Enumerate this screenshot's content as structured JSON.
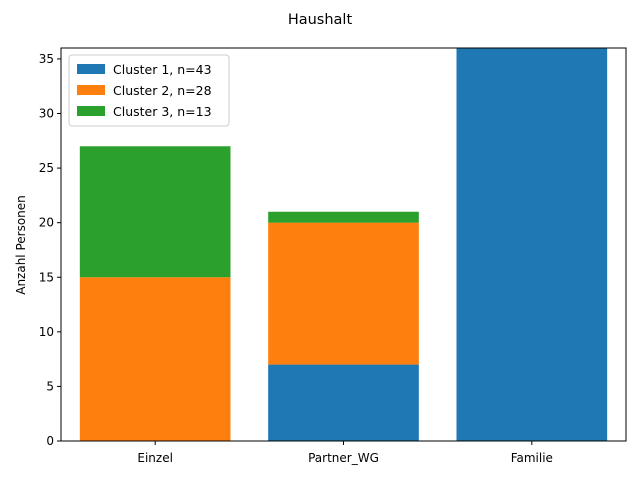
{
  "chart_data": {
    "type": "bar",
    "stacked": true,
    "title": "Haushalt",
    "xlabel": "",
    "ylabel": "Anzahl Personen",
    "categories": [
      "Einzel",
      "Partner_WG",
      "Familie"
    ],
    "series": [
      {
        "name": "Cluster 1, n=43",
        "color": "#1f77b4",
        "values": [
          0,
          7,
          36
        ]
      },
      {
        "name": "Cluster 2, n=28",
        "color": "#ff7f0e",
        "values": [
          15,
          13,
          0
        ]
      },
      {
        "name": "Cluster 3, n=13",
        "color": "#2ca02c",
        "values": [
          12,
          1,
          0
        ]
      }
    ],
    "ylim": [
      0,
      36
    ],
    "yticks": [
      0,
      5,
      10,
      15,
      20,
      25,
      30,
      35
    ],
    "grid": false,
    "legend": "top-left"
  }
}
